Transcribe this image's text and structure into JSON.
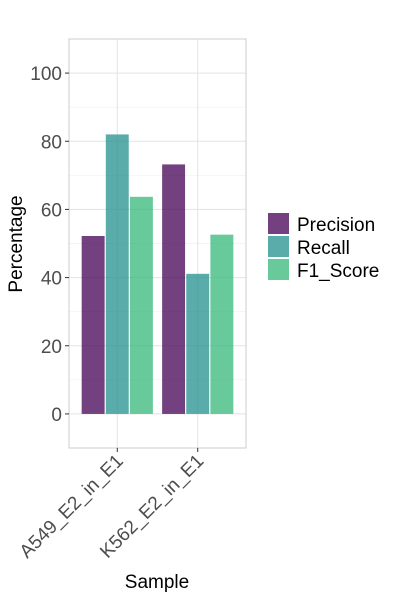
{
  "chart_data": {
    "type": "bar",
    "categories": [
      "A549_E2_in_E1",
      "K562_E2_in_E1"
    ],
    "series": [
      {
        "name": "Precision",
        "values": [
          52.2,
          73.2
        ],
        "color": "#440154"
      },
      {
        "name": "Recall",
        "values": [
          82.0,
          41.1
        ],
        "color": "#21908C"
      },
      {
        "name": "F1_Score",
        "values": [
          63.7,
          52.6
        ],
        "color": "#35B779"
      }
    ],
    "bar_opacity": 0.75,
    "xlabel": "Sample",
    "ylabel": "Percentage",
    "ylim": [
      -10,
      110
    ],
    "yticks": [
      0,
      20,
      40,
      60,
      80,
      100
    ],
    "grid": true,
    "legend_position": "right"
  }
}
